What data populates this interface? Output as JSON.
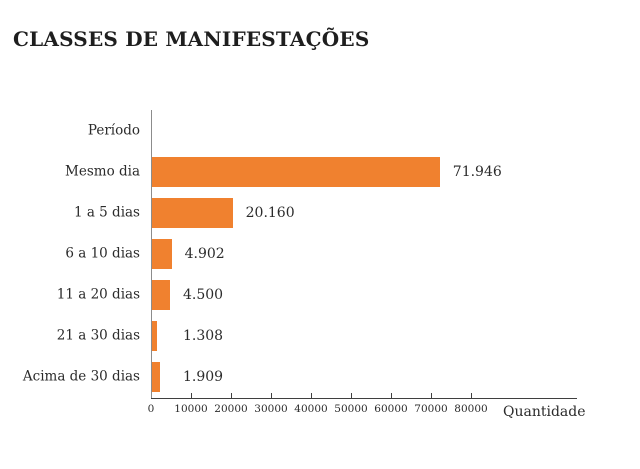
{
  "chart_data": {
    "type": "bar",
    "orientation": "horizontal",
    "title": "CLASSES DE MANIFESTAÇÕES",
    "ylabel": "Período",
    "xlabel": "Quantidade",
    "categories": [
      "Mesmo dia",
      "1 a 5 dias",
      "6 a 10 dias",
      "11 a 20 dias",
      "21 a 30 dias",
      "Acima de 30 dias"
    ],
    "values": [
      71946,
      20160,
      4902,
      4500,
      1308,
      1909
    ],
    "value_labels": [
      "71.946",
      "20.160",
      "4.902",
      "4.500",
      "1.308",
      "1.909"
    ],
    "xlim": [
      0,
      80000
    ],
    "x_ticks": [
      0,
      10000,
      20000,
      30000,
      40000,
      50000,
      60000,
      70000,
      80000
    ],
    "x_tick_labels": [
      "0",
      "10000",
      "20000",
      "30000",
      "40000",
      "50000",
      "60000",
      "70000",
      "80000"
    ],
    "grid": false,
    "legend": null,
    "colors": {
      "bar": "#F0812F",
      "y_axis": "#8C8C8C",
      "x_axis": "#3F3F3F",
      "text": "#2B2B2B",
      "title": "#1E1E1E"
    }
  }
}
